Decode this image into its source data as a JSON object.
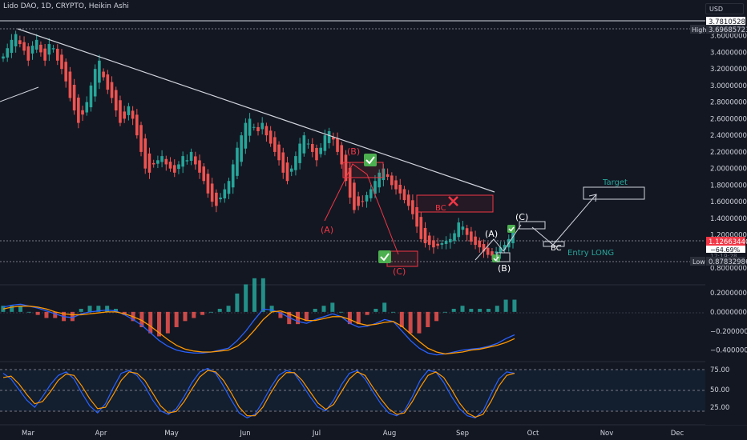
{
  "header": {
    "symbol_title": "Lido DAO, 1D, CRYPTO, Heikin Ashi",
    "currency_button": "USD"
  },
  "colors": {
    "background": "#131722",
    "up": "#26a69a",
    "down": "#ef5350",
    "macd_line": "#2962ff",
    "signal_line": "#ff9800",
    "annotation_red": "#f23645",
    "annotation_green": "#26a69a",
    "check_green": "#4caf50"
  },
  "price_axis": {
    "labels": [
      "3.60000000",
      "3.40000000",
      "3.20000000",
      "3.00000000",
      "2.80000000",
      "2.60000000",
      "2.40000000",
      "2.20000000",
      "2.00000000",
      "1.80000000",
      "1.60000000",
      "1.40000000",
      "1.20000000",
      "0.80000000"
    ],
    "high_label": "High",
    "high_value": "3.69685723",
    "top_value": "3.78105285",
    "low_label": "Low",
    "low_value": "0.87832986",
    "last_price": "1.12663440",
    "last_change": "−64.69%",
    "last_countdown": "12:19:28"
  },
  "macd_axis": {
    "labels": [
      "0.20000000",
      "0.00000000",
      "−0.20000000",
      "−0.40000000"
    ]
  },
  "stoch_axis": {
    "labels": [
      "75.00",
      "50.00",
      "25.00"
    ]
  },
  "time_axis": {
    "labels": [
      "Mar",
      "Apr",
      "May",
      "Jun",
      "Jul",
      "Aug",
      "Sep",
      "Oct",
      "Nov",
      "Dec"
    ]
  },
  "annotations": {
    "wave_a_red": "(A)",
    "wave_b_red": "(B)",
    "wave_c_red": "(C)",
    "bc_red": "BC",
    "wave_a_white": "(A)",
    "wave_b_white": "(B)",
    "wave_c_white": "(C)",
    "bc_white": "BC",
    "entry_long": "Entry LONG",
    "target": "Target"
  },
  "chart_data": [
    {
      "type": "candlestick",
      "name": "price",
      "ylim": [
        0.8,
        3.78
      ],
      "x_labels": [
        "Mar",
        "Apr",
        "May",
        "Jun",
        "Jul",
        "Aug",
        "Sep",
        "Oct",
        "Nov",
        "Dec"
      ],
      "heikin_ashi_closes": [
        3.35,
        3.45,
        3.55,
        3.62,
        3.5,
        3.42,
        3.3,
        3.48,
        3.55,
        3.4,
        3.3,
        3.5,
        3.45,
        3.3,
        3.2,
        3.05,
        2.85,
        2.7,
        2.55,
        2.65,
        2.8,
        3.0,
        3.2,
        3.3,
        3.1,
        2.95,
        2.85,
        2.7,
        2.55,
        2.6,
        2.75,
        2.6,
        2.4,
        2.2,
        2.0,
        1.95,
        2.05,
        2.1,
        2.15,
        2.05,
        2.0,
        1.95,
        2.05,
        2.15,
        2.1,
        2.2,
        2.05,
        1.95,
        1.85,
        1.7,
        1.6,
        1.55,
        1.65,
        1.75,
        1.85,
        2.05,
        2.25,
        2.4,
        2.55,
        2.6,
        2.5,
        2.45,
        2.55,
        2.4,
        2.3,
        2.2,
        2.1,
        1.95,
        1.85,
        2.0,
        2.15,
        2.3,
        2.4,
        2.3,
        2.2,
        2.1,
        2.25,
        2.4,
        2.45,
        2.35,
        2.2,
        2.05,
        1.85,
        1.65,
        1.5,
        1.55,
        1.6,
        1.68,
        1.75,
        1.85,
        1.95,
        2.0,
        1.9,
        1.8,
        1.75,
        1.7,
        1.62,
        1.55,
        1.45,
        1.3,
        1.15,
        1.1,
        1.08,
        1.05,
        1.07,
        1.1,
        1.13,
        1.15,
        1.22,
        1.35,
        1.3,
        1.2,
        1.12,
        1.08,
        1.05,
        1.0,
        0.96,
        0.95,
        1.0,
        1.05,
        1.08,
        1.15,
        1.24
      ],
      "high": 3.69685723,
      "low": 0.87832986,
      "last": 1.1266344
    },
    {
      "type": "line",
      "name": "macd",
      "ylim": [
        -0.47,
        0.25
      ],
      "series": [
        {
          "values": [
            0.05,
            0.07,
            0.08,
            0.06,
            0.04,
            0.01,
            -0.02,
            -0.05,
            -0.06,
            -0.02,
            0.0,
            0.01,
            0.02,
            0.01,
            -0.03,
            -0.08,
            -0.14,
            -0.22,
            -0.3,
            -0.36,
            -0.4,
            -0.42,
            -0.43,
            -0.43,
            -0.42,
            -0.4,
            -0.38,
            -0.3,
            -0.2,
            -0.08,
            0.03,
            0.02,
            -0.01,
            -0.06,
            -0.1,
            -0.12,
            -0.08,
            -0.05,
            -0.02,
            -0.05,
            -0.12,
            -0.16,
            -0.15,
            -0.12,
            -0.08,
            -0.1,
            -0.2,
            -0.3,
            -0.38,
            -0.43,
            -0.45,
            -0.44,
            -0.42,
            -0.4,
            -0.39,
            -0.38,
            -0.36,
            -0.33,
            -0.28,
            -0.24
          ]
        },
        {
          "values": [
            0.03,
            0.05,
            0.06,
            0.06,
            0.05,
            0.03,
            0.0,
            -0.02,
            -0.03,
            -0.03,
            -0.02,
            -0.01,
            0.0,
            0.0,
            -0.02,
            -0.05,
            -0.09,
            -0.15,
            -0.22,
            -0.29,
            -0.35,
            -0.39,
            -0.41,
            -0.42,
            -0.42,
            -0.41,
            -0.4,
            -0.36,
            -0.29,
            -0.19,
            -0.08,
            0.0,
            0.01,
            -0.02,
            -0.06,
            -0.09,
            -0.09,
            -0.07,
            -0.05,
            -0.05,
            -0.08,
            -0.12,
            -0.14,
            -0.13,
            -0.11,
            -0.1,
            -0.15,
            -0.23,
            -0.31,
            -0.38,
            -0.42,
            -0.44,
            -0.43,
            -0.42,
            -0.4,
            -0.39,
            -0.37,
            -0.35,
            -0.32,
            -0.28
          ]
        }
      ],
      "histogram_visible": true,
      "zero_line": 0
    },
    {
      "type": "line",
      "name": "stochastic",
      "ylim": [
        12,
        90
      ],
      "series": [
        {
          "values": [
            78,
            70,
            55,
            40,
            30,
            45,
            62,
            75,
            80,
            70,
            50,
            32,
            22,
            35,
            58,
            78,
            82,
            75,
            60,
            40,
            25,
            20,
            28,
            45,
            65,
            80,
            85,
            78,
            60,
            40,
            22,
            15,
            20,
            38,
            58,
            75,
            82,
            78,
            62,
            45,
            30,
            25,
            40,
            62,
            78,
            82,
            70,
            52,
            35,
            22,
            18,
            25,
            45,
            68,
            82,
            80,
            65,
            45,
            28,
            18,
            15,
            25,
            48,
            70,
            80,
            78
          ]
        },
        {
          "values": [
            72,
            74,
            63,
            48,
            35,
            38,
            52,
            68,
            77,
            75,
            60,
            42,
            28,
            30,
            48,
            68,
            80,
            78,
            68,
            50,
            32,
            22,
            24,
            38,
            56,
            73,
            82,
            80,
            68,
            50,
            30,
            18,
            18,
            30,
            50,
            68,
            79,
            79,
            68,
            52,
            36,
            27,
            34,
            52,
            70,
            80,
            75,
            58,
            42,
            28,
            20,
            22,
            38,
            58,
            75,
            80,
            72,
            55,
            36,
            22,
            16,
            20,
            38,
            60,
            75,
            78
          ]
        }
      ],
      "bands": [
        80,
        50,
        20
      ]
    }
  ]
}
